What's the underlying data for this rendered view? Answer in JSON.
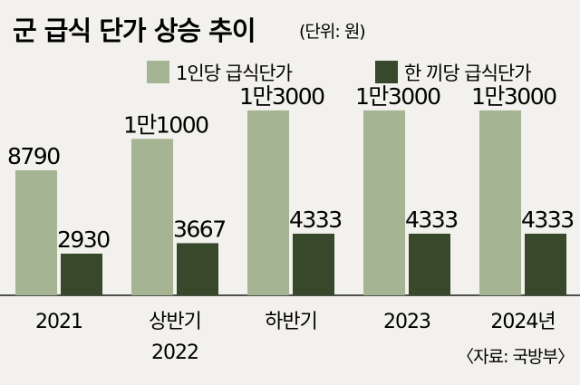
{
  "chart_data": {
    "type": "bar",
    "title": "군 급식 단가 상승 추이",
    "unit": "(단위: 원)",
    "categories": [
      [
        "2021"
      ],
      [
        "상반기",
        "2022"
      ],
      [
        "하반기"
      ],
      [
        "2023"
      ],
      [
        "2024년"
      ]
    ],
    "series": [
      {
        "name": "1인당 급식단가",
        "color": "#a5b593",
        "values": [
          8790,
          11000,
          13000,
          13000,
          13000
        ],
        "labels": [
          "8790",
          "1만1000",
          "1만3000",
          "1만3000",
          "1만3000"
        ]
      },
      {
        "name": "한 끼당 급식단가",
        "color": "#37492a",
        "values": [
          2930,
          3667,
          4333,
          4333,
          4333
        ],
        "labels": [
          "2930",
          "3667",
          "4333",
          "4333",
          "4333"
        ]
      }
    ],
    "ylim": [
      0,
      15000
    ],
    "grid": false,
    "legend_position": "top-right",
    "source": "〈자료: 국방부〉"
  }
}
